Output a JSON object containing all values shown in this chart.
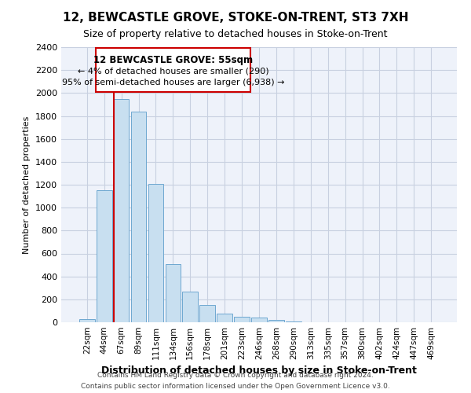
{
  "title": "12, BEWCASTLE GROVE, STOKE-ON-TRENT, ST3 7XH",
  "subtitle": "Size of property relative to detached houses in Stoke-on-Trent",
  "xlabel": "Distribution of detached houses by size in Stoke-on-Trent",
  "ylabel": "Number of detached properties",
  "bin_labels": [
    "22sqm",
    "44sqm",
    "67sqm",
    "89sqm",
    "111sqm",
    "134sqm",
    "156sqm",
    "178sqm",
    "201sqm",
    "223sqm",
    "246sqm",
    "268sqm",
    "290sqm",
    "313sqm",
    "335sqm",
    "357sqm",
    "380sqm",
    "402sqm",
    "424sqm",
    "447sqm",
    "469sqm"
  ],
  "bar_heights": [
    25,
    1150,
    1950,
    1840,
    1210,
    510,
    265,
    148,
    78,
    50,
    38,
    18,
    5,
    3,
    2,
    1,
    1,
    0,
    0,
    0,
    0
  ],
  "bar_color": "#c8dff0",
  "bar_edge_color": "#6ea8d0",
  "marker_color": "#cc0000",
  "ylim": [
    0,
    2400
  ],
  "yticks": [
    0,
    200,
    400,
    600,
    800,
    1000,
    1200,
    1400,
    1600,
    1800,
    2000,
    2200,
    2400
  ],
  "annotation_title": "12 BEWCASTLE GROVE: 55sqm",
  "annotation_line1": "← 4% of detached houses are smaller (290)",
  "annotation_line2": "95% of semi-detached houses are larger (6,938) →",
  "footer1": "Contains HM Land Registry data © Crown copyright and database right 2024.",
  "footer2": "Contains public sector information licensed under the Open Government Licence v3.0.",
  "bg_color": "#eef2fa",
  "grid_color": "#c8d0e0"
}
